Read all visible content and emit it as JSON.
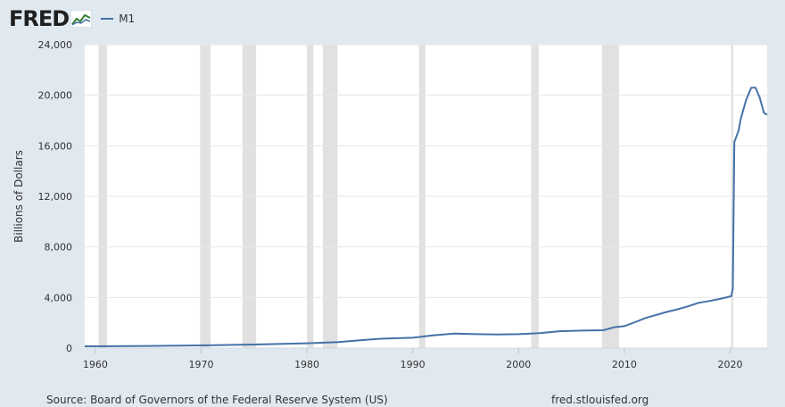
{
  "header": {
    "logo": "FRED",
    "legend_label": "M1"
  },
  "footer": {
    "source": "Source: Board of Governors of the Federal Reserve System (US)",
    "url": "fred.stlouisfed.org"
  },
  "colors": {
    "series": "#4572a7",
    "background": "#e1e9f0",
    "plot": "#ffffff",
    "recession": "#e1e1e1"
  },
  "chart_data": {
    "type": "line",
    "title": "",
    "ylabel": "Billions of Dollars",
    "xlabel": "",
    "ylim": [
      0,
      24000
    ],
    "xlim": [
      1959,
      2023.5
    ],
    "yticks": [
      0,
      4000,
      8000,
      12000,
      16000,
      20000,
      24000
    ],
    "ytick_labels": [
      "0",
      "4,000",
      "8,000",
      "12,000",
      "16,000",
      "20,000",
      "24,000"
    ],
    "xticks": [
      1960,
      1970,
      1980,
      1990,
      2000,
      2010,
      2020
    ],
    "xtick_labels": [
      "1960",
      "1970",
      "1980",
      "1990",
      "2000",
      "2010",
      "2020"
    ],
    "grid": "horizontal",
    "recessions": [
      [
        1960.3,
        1961.1
      ],
      [
        1969.9,
        1970.9
      ],
      [
        1973.9,
        1975.2
      ],
      [
        1980.0,
        1980.6
      ],
      [
        1981.5,
        1982.9
      ],
      [
        1990.6,
        1991.2
      ],
      [
        2001.2,
        2001.9
      ],
      [
        2007.9,
        2009.5
      ],
      [
        2020.1,
        2020.3
      ]
    ],
    "series": [
      {
        "name": "M1",
        "x": [
          1959,
          1965,
          1970,
          1975,
          1980,
          1983,
          1985,
          1987,
          1990,
          1992,
          1994,
          1996,
          1998,
          2000,
          2002,
          2004,
          2006,
          2008,
          2009,
          2010,
          2011,
          2012,
          2013,
          2014,
          2015,
          2016,
          2017,
          2018,
          2019,
          2020.1,
          2020.25,
          2020.4,
          2020.8,
          2021,
          2021.5,
          2022,
          2022.4,
          2022.8,
          2023.2,
          2023.5
        ],
        "values": [
          140,
          170,
          210,
          280,
          380,
          480,
          620,
          740,
          820,
          1020,
          1150,
          1100,
          1080,
          1100,
          1180,
          1340,
          1380,
          1410,
          1640,
          1740,
          2050,
          2380,
          2620,
          2860,
          3060,
          3300,
          3580,
          3720,
          3880,
          4100,
          4700,
          16300,
          17200,
          18100,
          19600,
          20600,
          20600,
          19800,
          18600,
          18450
        ]
      }
    ]
  }
}
